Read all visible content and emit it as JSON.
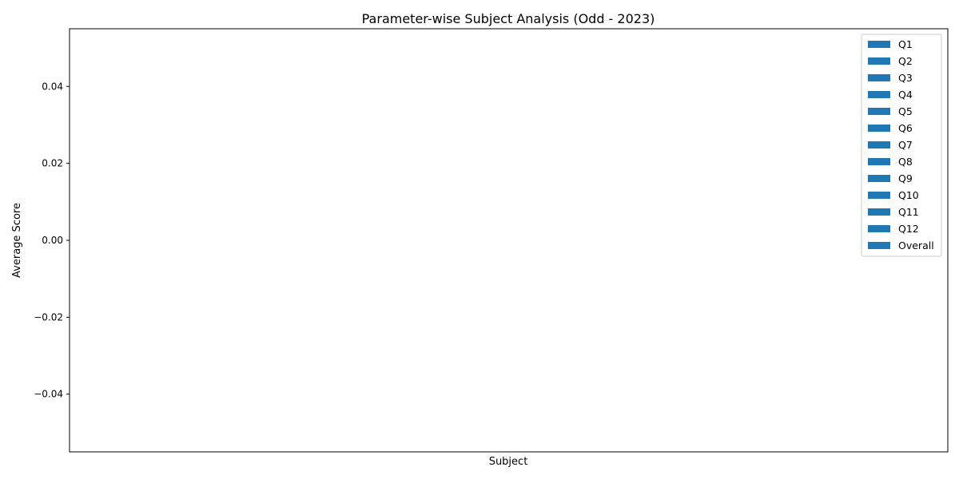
{
  "chart_data": {
    "type": "bar",
    "title": "Parameter-wise Subject Analysis (Odd - 2023)",
    "xlabel": "Subject",
    "ylabel": "Average Score",
    "categories": [],
    "ylim": [
      -0.055,
      0.055
    ],
    "yticks": [
      {
        "value": 0.04,
        "label": "0.04"
      },
      {
        "value": 0.02,
        "label": "0.02"
      },
      {
        "value": 0.0,
        "label": "0.00"
      },
      {
        "value": -0.02,
        "label": "−0.02"
      },
      {
        "value": -0.04,
        "label": "−0.04"
      }
    ],
    "grid": false,
    "legend_position": "top-right",
    "series": [
      {
        "name": "Q1",
        "values": [],
        "color": "#1f77b4"
      },
      {
        "name": "Q2",
        "values": [],
        "color": "#1f77b4"
      },
      {
        "name": "Q3",
        "values": [],
        "color": "#1f77b4"
      },
      {
        "name": "Q4",
        "values": [],
        "color": "#1f77b4"
      },
      {
        "name": "Q5",
        "values": [],
        "color": "#1f77b4"
      },
      {
        "name": "Q6",
        "values": [],
        "color": "#1f77b4"
      },
      {
        "name": "Q7",
        "values": [],
        "color": "#1f77b4"
      },
      {
        "name": "Q8",
        "values": [],
        "color": "#1f77b4"
      },
      {
        "name": "Q9",
        "values": [],
        "color": "#1f77b4"
      },
      {
        "name": "Q10",
        "values": [],
        "color": "#1f77b4"
      },
      {
        "name": "Q11",
        "values": [],
        "color": "#1f77b4"
      },
      {
        "name": "Q12",
        "values": [],
        "color": "#1f77b4"
      },
      {
        "name": "Overall",
        "values": [],
        "color": "#1f77b4"
      }
    ]
  }
}
